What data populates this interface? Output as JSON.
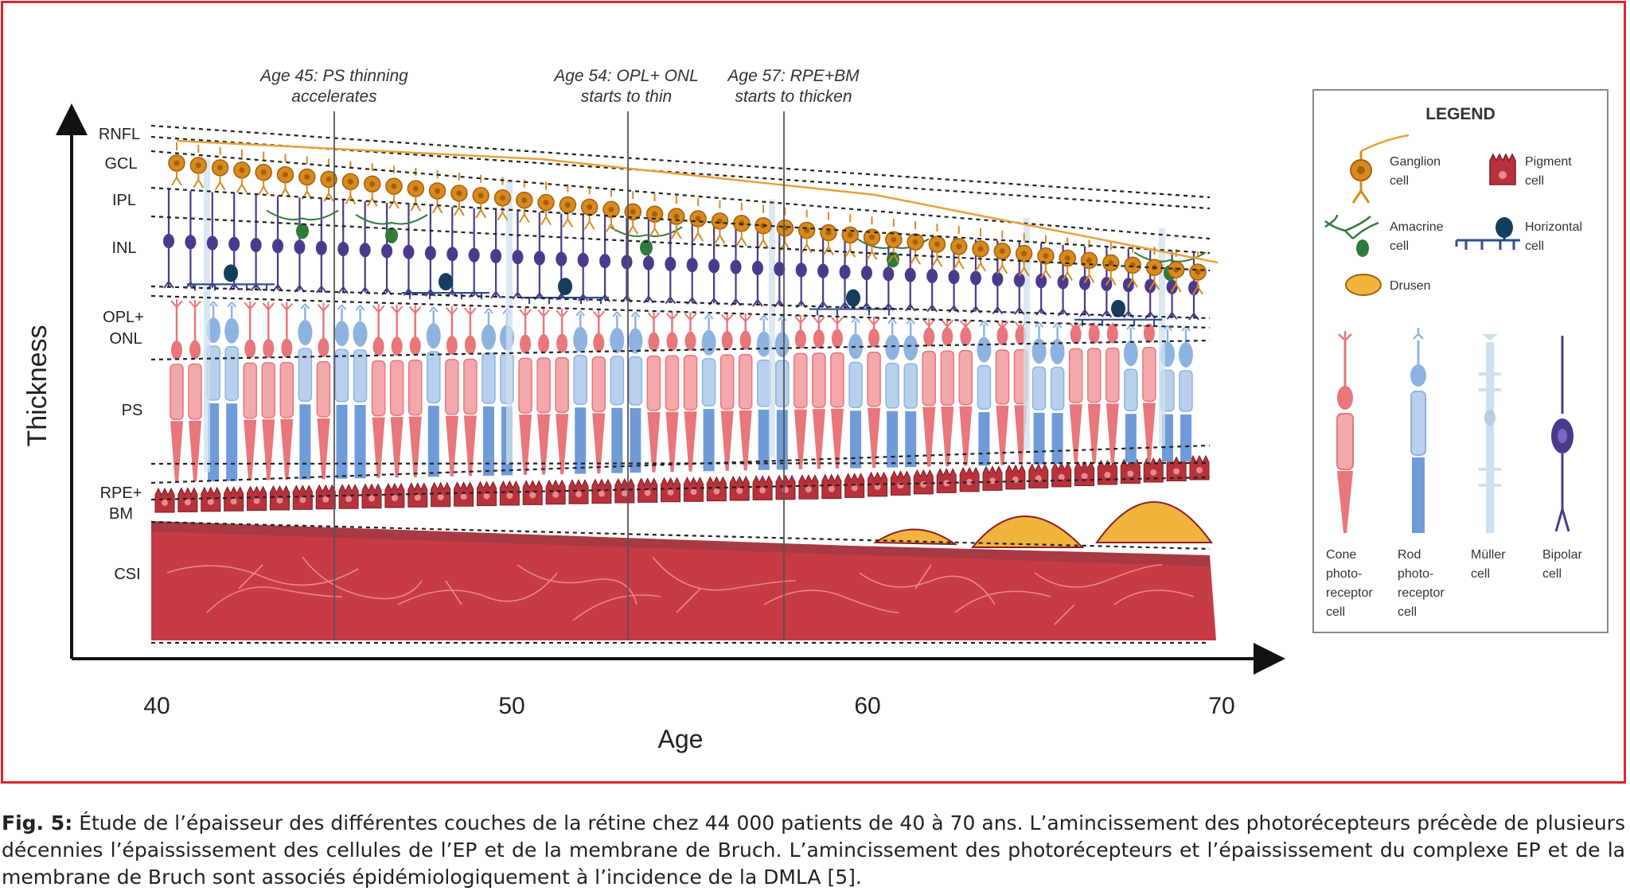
{
  "diagram": {
    "y_axis_label": "Thickness",
    "x_axis_label": "Age",
    "x_ticks": [
      "40",
      "50",
      "60",
      "70"
    ],
    "layers": [
      {
        "label": "RNFL"
      },
      {
        "label": "GCL"
      },
      {
        "label": "IPL"
      },
      {
        "label": "INL"
      },
      {
        "label": "OPL+",
        "label2": "ONL"
      },
      {
        "label": "PS"
      },
      {
        "label": "RPE+",
        "label2": "BM"
      },
      {
        "label": "CSI"
      }
    ],
    "annotations": [
      {
        "age": 45,
        "line1": "Age 45: PS thinning",
        "line2": "accelerates"
      },
      {
        "age": 54,
        "line1": "Age 54: OPL+ ONL",
        "line2": "starts to thin"
      },
      {
        "age": 57,
        "line1": "Age 57:  RPE+BM",
        "line2": "starts to thicken"
      }
    ],
    "colors": {
      "ganglion": "#d88a1f",
      "amacrine": "#2f7a3c",
      "horizontal": "#153d5c",
      "bipolar": "#4b3a8c",
      "cone": "#e8767a",
      "rod": "#8fb3e0",
      "muller": "#cfe0ee",
      "pigment": "#b8323c",
      "choroid": "#c73b45",
      "drusen": "#f1b43c",
      "frame": "#d8262f"
    }
  },
  "legend": {
    "title": "LEGEND",
    "items": [
      {
        "line1": "Ganglion",
        "line2": "cell",
        "icon": "ganglion-cell-icon"
      },
      {
        "line1": "Pigment",
        "line2": "cell",
        "icon": "pigment-cell-icon"
      },
      {
        "line1": "Amacrine",
        "line2": "cell",
        "icon": "amacrine-cell-icon"
      },
      {
        "line1": "Horizontal",
        "line2": "cell",
        "icon": "horizontal-cell-icon"
      },
      {
        "line1": "Drusen",
        "line2": "",
        "icon": "drusen-icon"
      }
    ],
    "cells": [
      {
        "lines": [
          "Cone",
          "photo-",
          "receptor",
          "cell"
        ],
        "icon": "cone-cell-icon"
      },
      {
        "lines": [
          "Rod",
          "photo-",
          "receptor",
          "cell"
        ],
        "icon": "rod-cell-icon"
      },
      {
        "lines": [
          "Müller",
          "cell"
        ],
        "icon": "muller-cell-icon"
      },
      {
        "lines": [
          "Bipolar",
          "cell"
        ],
        "icon": "bipolar-cell-icon"
      }
    ]
  },
  "caption": {
    "label": "Fig. 5:",
    "text": " Étude de l’épaisseur des différentes couches de la rétine chez 44 000 patients de 40 à 70 ans. L’amincissement des photorécepteurs précède de plusieurs décennies l’épaississement des cellules de l’EP et de la membrane de Bruch. L’amincissement des photorécepteurs et l’épaississement du complexe EP et de la membrane de Bruch sont associés épidémiologiquement à l’incidence de la DMLA [5]."
  }
}
